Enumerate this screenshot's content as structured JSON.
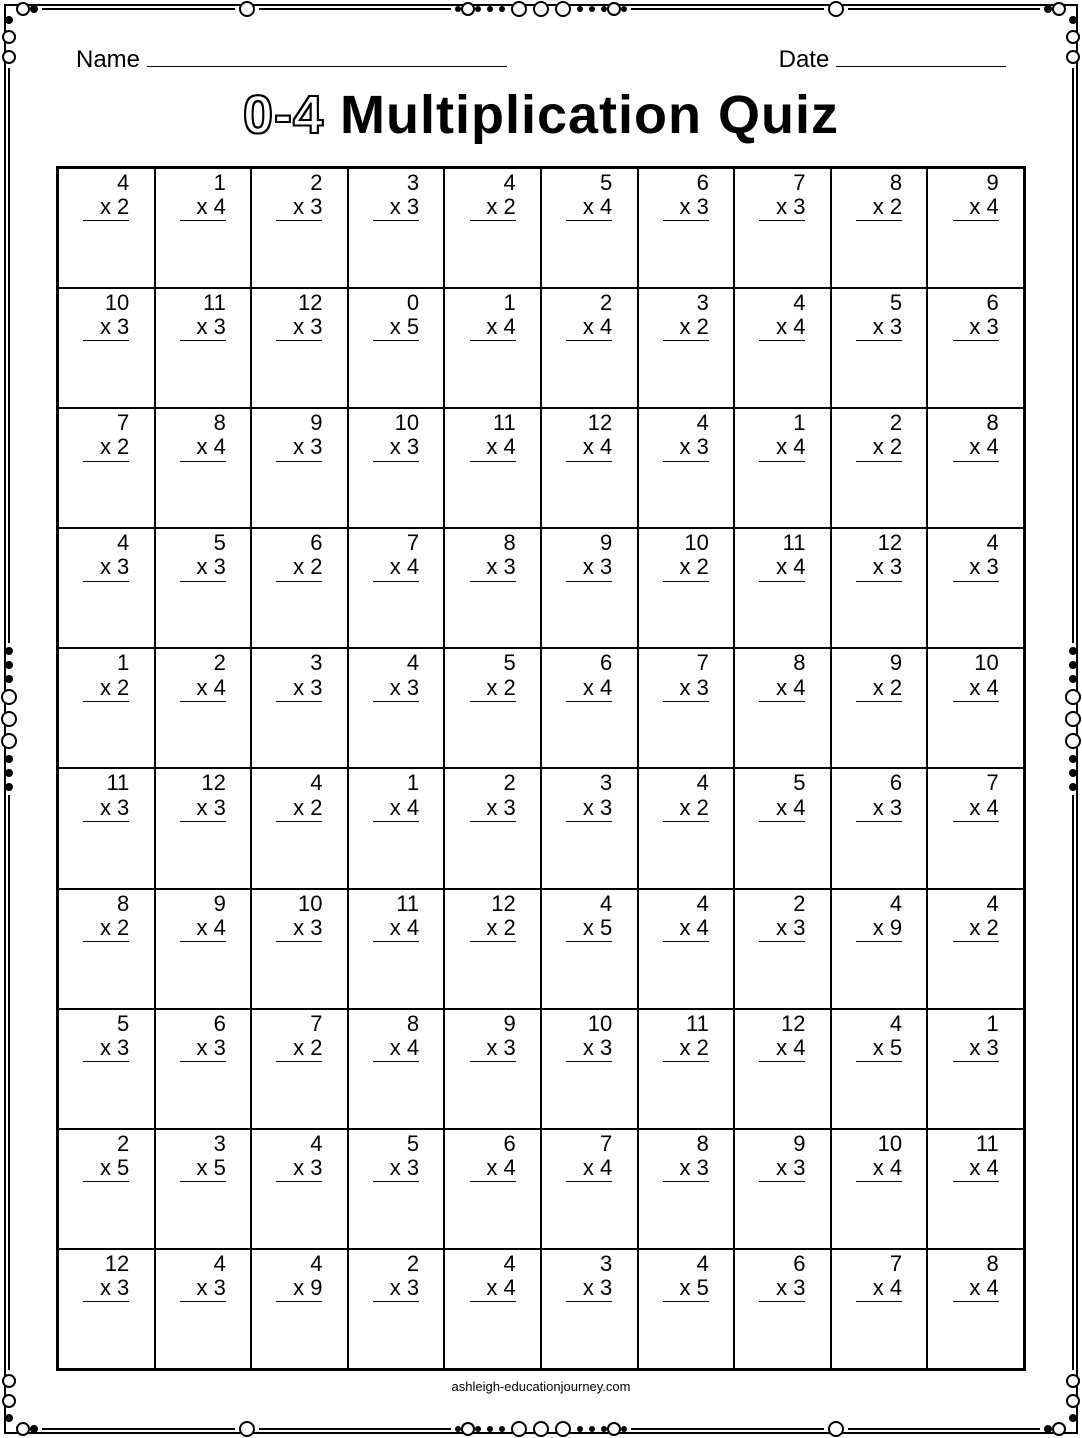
{
  "header": {
    "name_label": "Name",
    "name_blank_width": 360,
    "date_label": "Date",
    "date_blank_width": 170
  },
  "title": {
    "outlined": "0-4",
    "rest": "Multiplication Quiz"
  },
  "grid": {
    "cols": 10,
    "rows": 10,
    "problems": [
      [
        {
          "a": "4",
          "b": "2"
        },
        {
          "a": "1",
          "b": "4"
        },
        {
          "a": "2",
          "b": "3"
        },
        {
          "a": "3",
          "b": "3"
        },
        {
          "a": "4",
          "b": "2"
        },
        {
          "a": "5",
          "b": "4"
        },
        {
          "a": "6",
          "b": "3"
        },
        {
          "a": "7",
          "b": "3"
        },
        {
          "a": "8",
          "b": "2"
        },
        {
          "a": "9",
          "b": "4"
        }
      ],
      [
        {
          "a": "10",
          "b": "3"
        },
        {
          "a": "11",
          "b": "3"
        },
        {
          "a": "12",
          "b": "3"
        },
        {
          "a": "0",
          "b": "5"
        },
        {
          "a": "1",
          "b": "4"
        },
        {
          "a": "2",
          "b": "4"
        },
        {
          "a": "3",
          "b": "2"
        },
        {
          "a": "4",
          "b": "4"
        },
        {
          "a": "5",
          "b": "3"
        },
        {
          "a": "6",
          "b": "3"
        }
      ],
      [
        {
          "a": "7",
          "b": "2"
        },
        {
          "a": "8",
          "b": "4"
        },
        {
          "a": "9",
          "b": "3"
        },
        {
          "a": "10",
          "b": "3"
        },
        {
          "a": "11",
          "b": "4"
        },
        {
          "a": "12",
          "b": "4"
        },
        {
          "a": "4",
          "b": "3"
        },
        {
          "a": "1",
          "b": "4"
        },
        {
          "a": "2",
          "b": "2"
        },
        {
          "a": "8",
          "b": "4"
        }
      ],
      [
        {
          "a": "4",
          "b": "3"
        },
        {
          "a": "5",
          "b": "3"
        },
        {
          "a": "6",
          "b": "2"
        },
        {
          "a": "7",
          "b": "4"
        },
        {
          "a": "8",
          "b": "3"
        },
        {
          "a": "9",
          "b": "3"
        },
        {
          "a": "10",
          "b": "2"
        },
        {
          "a": "11",
          "b": "4"
        },
        {
          "a": "12",
          "b": "3"
        },
        {
          "a": "4",
          "b": "3"
        }
      ],
      [
        {
          "a": "1",
          "b": "2"
        },
        {
          "a": "2",
          "b": "4"
        },
        {
          "a": "3",
          "b": "3"
        },
        {
          "a": "4",
          "b": "3"
        },
        {
          "a": "5",
          "b": "2"
        },
        {
          "a": "6",
          "b": "4"
        },
        {
          "a": "7",
          "b": "3"
        },
        {
          "a": "8",
          "b": "4"
        },
        {
          "a": "9",
          "b": "2"
        },
        {
          "a": "10",
          "b": "4"
        }
      ],
      [
        {
          "a": "11",
          "b": "3"
        },
        {
          "a": "12",
          "b": "3"
        },
        {
          "a": "4",
          "b": "2"
        },
        {
          "a": "1",
          "b": "4"
        },
        {
          "a": "2",
          "b": "3"
        },
        {
          "a": "3",
          "b": "3"
        },
        {
          "a": "4",
          "b": "2"
        },
        {
          "a": "5",
          "b": "4"
        },
        {
          "a": "6",
          "b": "3"
        },
        {
          "a": "7",
          "b": "4"
        }
      ],
      [
        {
          "a": "8",
          "b": "2"
        },
        {
          "a": "9",
          "b": "4"
        },
        {
          "a": "10",
          "b": "3"
        },
        {
          "a": "11",
          "b": "4"
        },
        {
          "a": "12",
          "b": "2"
        },
        {
          "a": "4",
          "b": "5"
        },
        {
          "a": "4",
          "b": "4"
        },
        {
          "a": "2",
          "b": "3"
        },
        {
          "a": "4",
          "b": "9"
        },
        {
          "a": "4",
          "b": "2"
        }
      ],
      [
        {
          "a": "5",
          "b": "3"
        },
        {
          "a": "6",
          "b": "3"
        },
        {
          "a": "7",
          "b": "2"
        },
        {
          "a": "8",
          "b": "4"
        },
        {
          "a": "9",
          "b": "3"
        },
        {
          "a": "10",
          "b": "3"
        },
        {
          "a": "11",
          "b": "2"
        },
        {
          "a": "12",
          "b": "4"
        },
        {
          "a": "4",
          "b": "5"
        },
        {
          "a": "1",
          "b": "3"
        }
      ],
      [
        {
          "a": "2",
          "b": "5"
        },
        {
          "a": "3",
          "b": "5"
        },
        {
          "a": "4",
          "b": "3"
        },
        {
          "a": "5",
          "b": "3"
        },
        {
          "a": "6",
          "b": "4"
        },
        {
          "a": "7",
          "b": "4"
        },
        {
          "a": "8",
          "b": "3"
        },
        {
          "a": "9",
          "b": "3"
        },
        {
          "a": "10",
          "b": "4"
        },
        {
          "a": "11",
          "b": "4"
        }
      ],
      [
        {
          "a": "12",
          "b": "3"
        },
        {
          "a": "4",
          "b": "3"
        },
        {
          "a": "4",
          "b": "9"
        },
        {
          "a": "2",
          "b": "3"
        },
        {
          "a": "4",
          "b": "4"
        },
        {
          "a": "3",
          "b": "3"
        },
        {
          "a": "4",
          "b": "5"
        },
        {
          "a": "6",
          "b": "3"
        },
        {
          "a": "7",
          "b": "4"
        },
        {
          "a": "8",
          "b": "4"
        }
      ]
    ]
  },
  "footer": "ashleigh-educationjourney.com",
  "colors": {
    "ink": "#000000",
    "paper": "#ffffff"
  }
}
